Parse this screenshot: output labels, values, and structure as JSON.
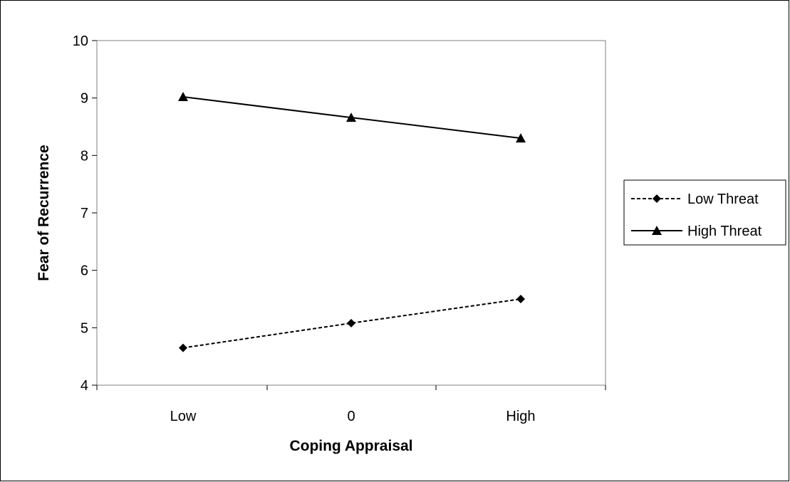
{
  "chart_data": {
    "type": "line",
    "title": "",
    "xlabel": "Coping Appraisal",
    "ylabel": "Fear of Recurrence",
    "categories": [
      "Low",
      "0",
      "High"
    ],
    "ylim": [
      4,
      10
    ],
    "yticks": [
      "4",
      "5",
      "6",
      "7",
      "8",
      "9",
      "10"
    ],
    "grid": false,
    "legend": "right",
    "series": [
      {
        "name": "Low Threat",
        "values": [
          4.65,
          5.08,
          5.5
        ],
        "marker": "diamond",
        "line_style": "dashed",
        "color": "#000000"
      },
      {
        "name": "High Threat",
        "values": [
          9.02,
          8.66,
          8.3
        ],
        "marker": "triangle",
        "line_style": "solid",
        "color": "#000000"
      }
    ]
  }
}
